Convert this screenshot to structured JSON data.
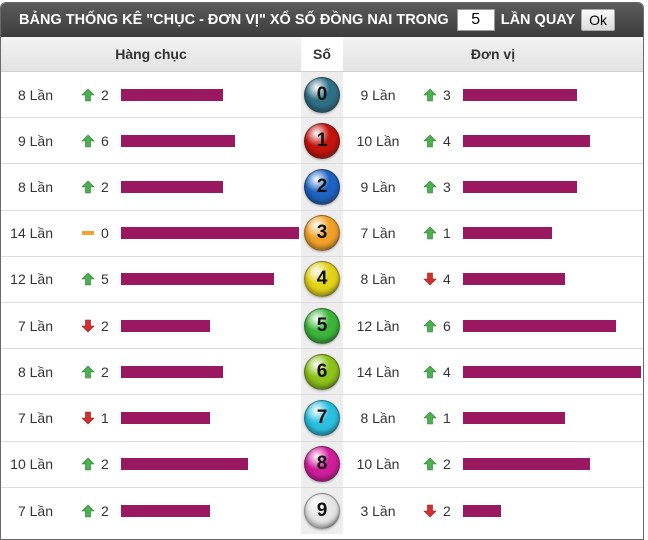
{
  "title": {
    "prefix": "BẢNG THỐNG KÊ \"CHỤC - ĐƠN VỊ\" XỔ SỐ ĐỒNG NAI TRONG",
    "count_value": "5",
    "suffix": "LẦN QUAY",
    "ok_label": "Ok"
  },
  "header": {
    "chuc": "Hàng chục",
    "so": "Số",
    "donvi": "Đơn vị"
  },
  "max_times": 14,
  "colors": {
    "bar": "#99185f",
    "up": "#4caf50",
    "down": "#d32f2f",
    "same": "#f0a030"
  },
  "rows": [
    {
      "digit": "0",
      "ball_color": "#2f6f86",
      "chuc": {
        "times": "8 Lần",
        "n": 8,
        "trend": "up",
        "delta": "2"
      },
      "donvi": {
        "times": "9 Lần",
        "n": 9,
        "trend": "up",
        "delta": "3"
      }
    },
    {
      "digit": "1",
      "ball_color": "#c4140e",
      "chuc": {
        "times": "9 Lần",
        "n": 9,
        "trend": "up",
        "delta": "6"
      },
      "donvi": {
        "times": "10 Lần",
        "n": 10,
        "trend": "up",
        "delta": "4"
      }
    },
    {
      "digit": "2",
      "ball_color": "#1f63c2",
      "chuc": {
        "times": "8 Lần",
        "n": 8,
        "trend": "up",
        "delta": "2"
      },
      "donvi": {
        "times": "9 Lần",
        "n": 9,
        "trend": "up",
        "delta": "3"
      }
    },
    {
      "digit": "3",
      "ball_color": "#f2a22a",
      "chuc": {
        "times": "14 Lần",
        "n": 14,
        "trend": "same",
        "delta": "0"
      },
      "donvi": {
        "times": "7 Lần",
        "n": 7,
        "trend": "up",
        "delta": "1"
      }
    },
    {
      "digit": "4",
      "ball_color": "#e3d21a",
      "chuc": {
        "times": "12 Lần",
        "n": 12,
        "trend": "up",
        "delta": "5"
      },
      "donvi": {
        "times": "8 Lần",
        "n": 8,
        "trend": "down",
        "delta": "4"
      }
    },
    {
      "digit": "5",
      "ball_color": "#3cb53a",
      "chuc": {
        "times": "7 Lần",
        "n": 7,
        "trend": "down",
        "delta": "2"
      },
      "donvi": {
        "times": "12 Lần",
        "n": 12,
        "trend": "up",
        "delta": "6"
      }
    },
    {
      "digit": "6",
      "ball_color": "#8cc21a",
      "chuc": {
        "times": "8 Lần",
        "n": 8,
        "trend": "up",
        "delta": "2"
      },
      "donvi": {
        "times": "14 Lần",
        "n": 14,
        "trend": "up",
        "delta": "4"
      }
    },
    {
      "digit": "7",
      "ball_color": "#2bbfe0",
      "chuc": {
        "times": "7 Lần",
        "n": 7,
        "trend": "down",
        "delta": "1"
      },
      "donvi": {
        "times": "8 Lần",
        "n": 8,
        "trend": "up",
        "delta": "1"
      }
    },
    {
      "digit": "8",
      "ball_color": "#d01d9c",
      "chuc": {
        "times": "10 Lần",
        "n": 10,
        "trend": "up",
        "delta": "2"
      },
      "donvi": {
        "times": "10 Lần",
        "n": 10,
        "trend": "up",
        "delta": "2"
      }
    },
    {
      "digit": "9",
      "ball_color": "#e6e6e6",
      "chuc": {
        "times": "7 Lần",
        "n": 7,
        "trend": "up",
        "delta": "2"
      },
      "donvi": {
        "times": "3 Lần",
        "n": 3,
        "trend": "down",
        "delta": "2"
      }
    }
  ]
}
